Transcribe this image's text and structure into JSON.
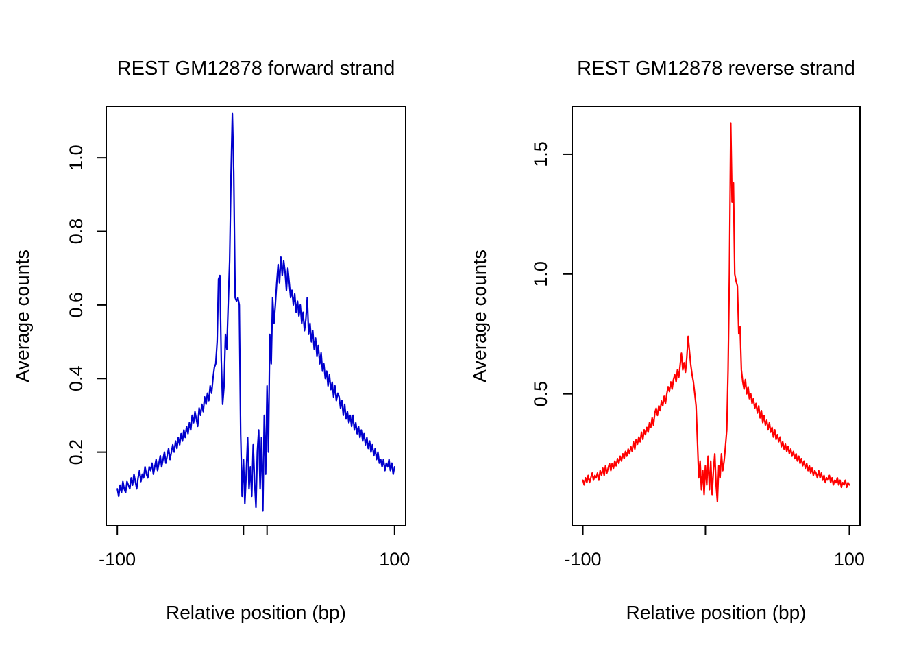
{
  "chart_data": [
    {
      "type": "line",
      "title": "REST GM12878 forward strand",
      "xlabel": "Relative position (bp)",
      "ylabel": "Average counts",
      "color": "#0000cd",
      "xlim": [
        -108,
        108
      ],
      "ylim": [
        0,
        1.14
      ],
      "x_ticks": [
        -100,
        -9,
        8,
        100
      ],
      "x_tick_labels": [
        "-100",
        "",
        "",
        "100"
      ],
      "y_ticks": [
        0.2,
        0.4,
        0.6,
        0.8,
        1.0
      ],
      "y_tick_labels": [
        "0.2",
        "0.4",
        "0.6",
        "0.8",
        "1.0"
      ],
      "x_start": -100,
      "x_step": 1,
      "values": [
        0.1,
        0.08,
        0.11,
        0.09,
        0.12,
        0.1,
        0.09,
        0.12,
        0.11,
        0.1,
        0.13,
        0.11,
        0.14,
        0.12,
        0.1,
        0.13,
        0.15,
        0.12,
        0.14,
        0.13,
        0.16,
        0.14,
        0.13,
        0.16,
        0.15,
        0.17,
        0.14,
        0.16,
        0.18,
        0.15,
        0.17,
        0.19,
        0.16,
        0.18,
        0.2,
        0.17,
        0.19,
        0.21,
        0.18,
        0.2,
        0.22,
        0.2,
        0.23,
        0.21,
        0.24,
        0.22,
        0.25,
        0.23,
        0.26,
        0.24,
        0.27,
        0.25,
        0.28,
        0.26,
        0.3,
        0.28,
        0.31,
        0.29,
        0.27,
        0.32,
        0.3,
        0.33,
        0.31,
        0.35,
        0.33,
        0.36,
        0.34,
        0.38,
        0.36,
        0.4,
        0.43,
        0.44,
        0.5,
        0.67,
        0.68,
        0.45,
        0.33,
        0.38,
        0.52,
        0.48,
        0.6,
        0.72,
        0.95,
        1.12,
        0.96,
        0.62,
        0.61,
        0.62,
        0.6,
        0.25,
        0.08,
        0.18,
        0.06,
        0.14,
        0.24,
        0.1,
        0.16,
        0.08,
        0.22,
        0.12,
        0.05,
        0.2,
        0.26,
        0.1,
        0.24,
        0.04,
        0.3,
        0.14,
        0.38,
        0.2,
        0.52,
        0.44,
        0.62,
        0.55,
        0.6,
        0.66,
        0.71,
        0.66,
        0.73,
        0.68,
        0.72,
        0.69,
        0.64,
        0.7,
        0.66,
        0.62,
        0.64,
        0.6,
        0.63,
        0.58,
        0.61,
        0.57,
        0.6,
        0.55,
        0.58,
        0.53,
        0.56,
        0.62,
        0.52,
        0.55,
        0.5,
        0.53,
        0.48,
        0.51,
        0.46,
        0.49,
        0.44,
        0.47,
        0.42,
        0.44,
        0.4,
        0.42,
        0.38,
        0.41,
        0.37,
        0.39,
        0.35,
        0.38,
        0.34,
        0.36,
        0.35,
        0.32,
        0.34,
        0.3,
        0.33,
        0.29,
        0.31,
        0.28,
        0.3,
        0.27,
        0.3,
        0.26,
        0.28,
        0.25,
        0.27,
        0.24,
        0.26,
        0.23,
        0.25,
        0.22,
        0.24,
        0.21,
        0.23,
        0.2,
        0.22,
        0.19,
        0.21,
        0.18,
        0.2,
        0.17,
        0.18,
        0.16,
        0.18,
        0.15,
        0.17,
        0.16,
        0.18,
        0.15,
        0.17,
        0.14,
        0.16
      ]
    },
    {
      "type": "line",
      "title": "REST GM12878 reverse strand",
      "xlabel": "Relative position (bp)",
      "ylabel": "Average counts",
      "color": "#ff0000",
      "xlim": [
        -108,
        108
      ],
      "ylim": [
        -0.05,
        1.7
      ],
      "x_ticks": [
        -100,
        -8,
        100
      ],
      "x_tick_labels": [
        "-100",
        "",
        "100"
      ],
      "y_ticks": [
        0.5,
        1.0,
        1.5
      ],
      "y_tick_labels": [
        "0.5",
        "1.0",
        "1.5"
      ],
      "x_start": -100,
      "x_step": 1,
      "values": [
        0.14,
        0.12,
        0.15,
        0.13,
        0.16,
        0.13,
        0.15,
        0.17,
        0.14,
        0.16,
        0.15,
        0.17,
        0.14,
        0.18,
        0.16,
        0.19,
        0.16,
        0.2,
        0.17,
        0.19,
        0.21,
        0.18,
        0.21,
        0.19,
        0.22,
        0.2,
        0.23,
        0.21,
        0.24,
        0.22,
        0.25,
        0.23,
        0.26,
        0.24,
        0.27,
        0.25,
        0.28,
        0.26,
        0.3,
        0.27,
        0.31,
        0.29,
        0.32,
        0.3,
        0.34,
        0.31,
        0.35,
        0.33,
        0.36,
        0.34,
        0.38,
        0.36,
        0.4,
        0.37,
        0.42,
        0.44,
        0.41,
        0.45,
        0.43,
        0.47,
        0.45,
        0.49,
        0.46,
        0.5,
        0.53,
        0.51,
        0.55,
        0.52,
        0.56,
        0.58,
        0.55,
        0.6,
        0.57,
        0.62,
        0.67,
        0.6,
        0.63,
        0.59,
        0.65,
        0.74,
        0.68,
        0.62,
        0.58,
        0.55,
        0.5,
        0.45,
        0.3,
        0.15,
        0.22,
        0.1,
        0.18,
        0.08,
        0.2,
        0.12,
        0.24,
        0.1,
        0.22,
        0.08,
        0.18,
        0.25,
        0.12,
        0.05,
        0.2,
        0.15,
        0.25,
        0.18,
        0.22,
        0.28,
        0.35,
        0.6,
        1.0,
        1.63,
        1.3,
        1.38,
        1.0,
        0.97,
        0.95,
        0.75,
        0.78,
        0.6,
        0.55,
        0.52,
        0.56,
        0.5,
        0.53,
        0.48,
        0.5,
        0.46,
        0.48,
        0.44,
        0.46,
        0.42,
        0.45,
        0.4,
        0.43,
        0.38,
        0.41,
        0.37,
        0.39,
        0.35,
        0.38,
        0.34,
        0.36,
        0.32,
        0.35,
        0.31,
        0.33,
        0.3,
        0.32,
        0.28,
        0.3,
        0.27,
        0.29,
        0.26,
        0.28,
        0.25,
        0.27,
        0.24,
        0.26,
        0.23,
        0.25,
        0.22,
        0.24,
        0.21,
        0.23,
        0.2,
        0.22,
        0.19,
        0.21,
        0.18,
        0.2,
        0.17,
        0.19,
        0.16,
        0.18,
        0.17,
        0.15,
        0.18,
        0.15,
        0.17,
        0.14,
        0.16,
        0.13,
        0.15,
        0.14,
        0.16,
        0.13,
        0.15,
        0.12,
        0.14,
        0.13,
        0.15,
        0.12,
        0.14,
        0.11,
        0.13,
        0.12,
        0.14,
        0.11,
        0.13,
        0.12
      ]
    }
  ]
}
